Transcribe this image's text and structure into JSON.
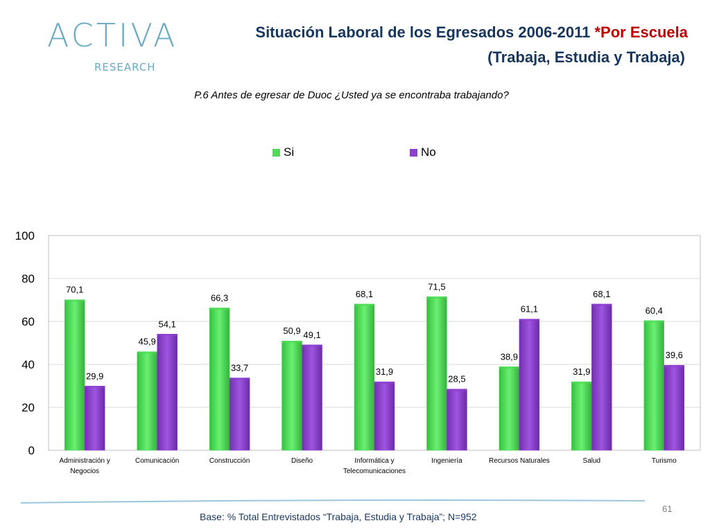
{
  "logo": {
    "main": "ACTIVA",
    "sub": "RESEARCH"
  },
  "header": {
    "title_line1_main": "Situación Laboral de los Egresados 2006-2011 ",
    "title_line1_highlight": "*Por Escuela",
    "title_line2": "(Trabaja, Estudia y Trabaja)"
  },
  "subtitle": "P.6 Antes de egresar de Duoc ¿Usted ya se encontraba trabajando?",
  "footer": {
    "base": "Base: % Total Entrevistados “Trabaja, Estudia y Trabaja”; N=952",
    "page": "61"
  },
  "colors": {
    "si": "#4ddc55",
    "no": "#8e3fd0",
    "title": "#17365d",
    "highlight": "#c00000"
  },
  "chart_data": {
    "type": "bar",
    "categories": [
      "Administración y Negocios",
      "Comunicación",
      "Construcción",
      "Diseño",
      "Informática y Telecomunicaciones",
      "Ingeniería",
      "Recursos Naturales",
      "Salud",
      "Turismo"
    ],
    "category_lines": [
      [
        "Administración y",
        "Negocios"
      ],
      [
        "Comunicación"
      ],
      [
        "Construcción"
      ],
      [
        "Diseño"
      ],
      [
        "Informática y",
        "Telecomunicaciones"
      ],
      [
        "Ingeniería"
      ],
      [
        "Recursos Naturales"
      ],
      [
        "Salud"
      ],
      [
        "Turismo"
      ]
    ],
    "series": [
      {
        "name": "Si",
        "values": [
          70.1,
          45.9,
          66.3,
          50.9,
          68.1,
          71.5,
          38.9,
          31.9,
          60.4
        ],
        "labels": [
          "70,1",
          "45,9",
          "66,3",
          "50,9",
          "68,1",
          "71,5",
          "38,9",
          "31,9",
          "60,4"
        ]
      },
      {
        "name": "No",
        "values": [
          29.9,
          54.1,
          33.7,
          49.1,
          31.9,
          28.5,
          61.1,
          68.1,
          39.6
        ],
        "labels": [
          "29,9",
          "54,1",
          "33,7",
          "49,1",
          "31,9",
          "28,5",
          "61,1",
          "68,1",
          "39,6"
        ]
      }
    ],
    "yticks": [
      "0",
      "20",
      "40",
      "60",
      "80",
      "100"
    ],
    "ylim": [
      0,
      100
    ],
    "legend_position": "top"
  }
}
